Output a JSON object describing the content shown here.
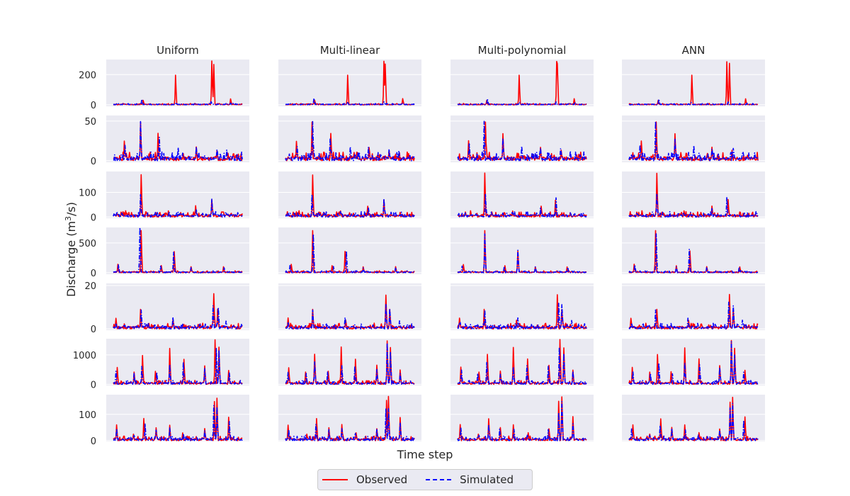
{
  "chart_data": {
    "type": "line",
    "xlabel": "Time step",
    "ylabel_prefix": "Discharge (m",
    "ylabel_sup": "3",
    "ylabel_suffix": "/s)",
    "columns": [
      "Uniform",
      "Multi-linear",
      "Multi-polynomial",
      "ANN"
    ],
    "legend": {
      "placement": "bottom-center",
      "observed": "Observed",
      "simulated": "Simulated"
    },
    "colors": {
      "observed": "#ff0000",
      "simulated": "#0000ff",
      "panel_bg": "#eaeaf2",
      "grid": "#ffffff"
    },
    "grid": true,
    "n_points": 200,
    "rows": [
      {
        "ylim": [
          -10,
          300
        ],
        "yticks": [
          "0",
          "200"
        ],
        "ytick_values": [
          0,
          200
        ],
        "observed_peaks": [
          [
            45,
            30
          ],
          [
            96,
            200
          ],
          [
            152,
            290
          ],
          [
            154,
            270
          ],
          [
            181,
            40
          ]
        ],
        "simulated_peaks": [
          [
            45,
            40
          ],
          [
            96,
            15
          ],
          [
            152,
            20
          ],
          [
            181,
            12
          ]
        ],
        "base": [
          0,
          4
        ]
      },
      {
        "ylim": [
          -2,
          57
        ],
        "yticks": [
          "0",
          "50"
        ],
        "ytick_values": [
          0,
          50
        ],
        "observed_peaks": [
          [
            18,
            25
          ],
          [
            42,
            50
          ],
          [
            70,
            34
          ],
          [
            128,
            17
          ],
          [
            160,
            13
          ]
        ],
        "simulated_peaks": [
          [
            18,
            20
          ],
          [
            42,
            52
          ],
          [
            70,
            27
          ],
          [
            100,
            18
          ],
          [
            128,
            16
          ],
          [
            160,
            14
          ],
          [
            175,
            12
          ]
        ],
        "base": [
          0,
          5
        ]
      },
      {
        "ylim": [
          -5,
          185
        ],
        "yticks": [
          "0",
          "100"
        ],
        "ytick_values": [
          0,
          100
        ],
        "observed_peaks": [
          [
            12,
            20
          ],
          [
            20,
            25
          ],
          [
            42,
            175
          ],
          [
            52,
            20
          ],
          [
            85,
            25
          ],
          [
            128,
            45
          ],
          [
            152,
            70
          ]
        ],
        "simulated_peaks": [
          [
            12,
            18
          ],
          [
            42,
            100
          ],
          [
            52,
            18
          ],
          [
            85,
            20
          ],
          [
            128,
            35
          ],
          [
            152,
            75
          ]
        ],
        "base": [
          0,
          10
        ]
      },
      {
        "ylim": [
          -25,
          760
        ],
        "yticks": [
          "0",
          "500"
        ],
        "ytick_values": [
          0,
          500
        ],
        "observed_peaks": [
          [
            8,
            140
          ],
          [
            42,
            700
          ],
          [
            73,
            120
          ],
          [
            93,
            360
          ],
          [
            120,
            100
          ],
          [
            170,
            100
          ]
        ],
        "simulated_peaks": [
          [
            8,
            120
          ],
          [
            42,
            740
          ],
          [
            73,
            110
          ],
          [
            93,
            350
          ],
          [
            120,
            90
          ],
          [
            170,
            90
          ]
        ],
        "base": [
          0,
          15
        ]
      },
      {
        "ylim": [
          -0.6,
          21
        ],
        "yticks": [
          "0",
          "20"
        ],
        "ytick_values": [
          0,
          20
        ],
        "observed_peaks": [
          [
            4,
            5
          ],
          [
            42,
            9
          ],
          [
            92,
            4
          ],
          [
            155,
            16
          ],
          [
            161,
            9
          ]
        ],
        "simulated_peaks": [
          [
            4,
            3
          ],
          [
            42,
            8
          ],
          [
            92,
            5
          ],
          [
            155,
            12
          ],
          [
            161,
            10
          ],
          [
            175,
            4
          ]
        ],
        "base": [
          0,
          1.2
        ]
      },
      {
        "ylim": [
          -40,
          1550
        ],
        "yticks": [
          "0",
          "1000"
        ],
        "ytick_values": [
          0,
          1000
        ],
        "observed_peaks": [
          [
            5,
            580
          ],
          [
            32,
            420
          ],
          [
            45,
            1000
          ],
          [
            66,
            440
          ],
          [
            86,
            1250
          ],
          [
            108,
            850
          ],
          [
            141,
            640
          ],
          [
            158,
            1500
          ],
          [
            163,
            1250
          ],
          [
            178,
            480
          ]
        ],
        "simulated_peaks": [
          [
            5,
            460
          ],
          [
            32,
            350
          ],
          [
            45,
            680
          ],
          [
            66,
            380
          ],
          [
            86,
            650
          ],
          [
            108,
            680
          ],
          [
            141,
            560
          ],
          [
            158,
            1300
          ],
          [
            163,
            1050
          ],
          [
            178,
            400
          ]
        ],
        "base": [
          0,
          60
        ]
      },
      {
        "ylim": [
          -3,
          175
        ],
        "yticks": [
          "0",
          "100"
        ],
        "ytick_values": [
          0,
          100
        ],
        "observed_peaks": [
          [
            5,
            60
          ],
          [
            32,
            25
          ],
          [
            48,
            85
          ],
          [
            66,
            50
          ],
          [
            86,
            60
          ],
          [
            108,
            30
          ],
          [
            141,
            45
          ],
          [
            156,
            150
          ],
          [
            160,
            165
          ],
          [
            178,
            90
          ]
        ],
        "simulated_peaks": [
          [
            5,
            45
          ],
          [
            32,
            20
          ],
          [
            48,
            65
          ],
          [
            66,
            42
          ],
          [
            86,
            45
          ],
          [
            108,
            25
          ],
          [
            141,
            40
          ],
          [
            156,
            120
          ],
          [
            160,
            135
          ],
          [
            178,
            70
          ]
        ],
        "base": [
          0,
          8
        ]
      }
    ]
  }
}
